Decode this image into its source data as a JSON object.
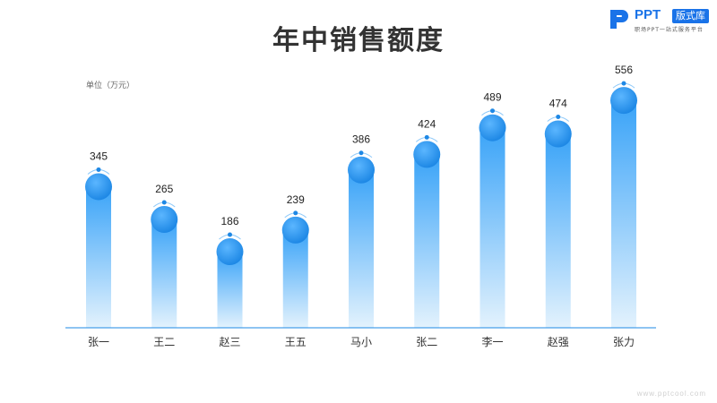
{
  "logo": {
    "brand": "PPT",
    "badge": "版式库",
    "tagline": "职场PPT一站式服务平台"
  },
  "watermark": "www.pptcool.com",
  "unit_label": "单位（万元）",
  "colors": {
    "bar_top": "#39a3f8",
    "bar_bottom": "#e3f2fd",
    "bubble": "#1e88e5",
    "axis": "#1e88e5"
  },
  "chart_data": {
    "type": "bar",
    "title": "年中销售额度",
    "xlabel": "",
    "ylabel": "",
    "categories": [
      "张一",
      "王二",
      "赵三",
      "王五",
      "马小",
      "张二",
      "李一",
      "赵强",
      "张力"
    ],
    "values": [
      345,
      265,
      186,
      239,
      386,
      424,
      489,
      474,
      556
    ],
    "ylim": [
      0,
      600
    ],
    "grid": false
  }
}
